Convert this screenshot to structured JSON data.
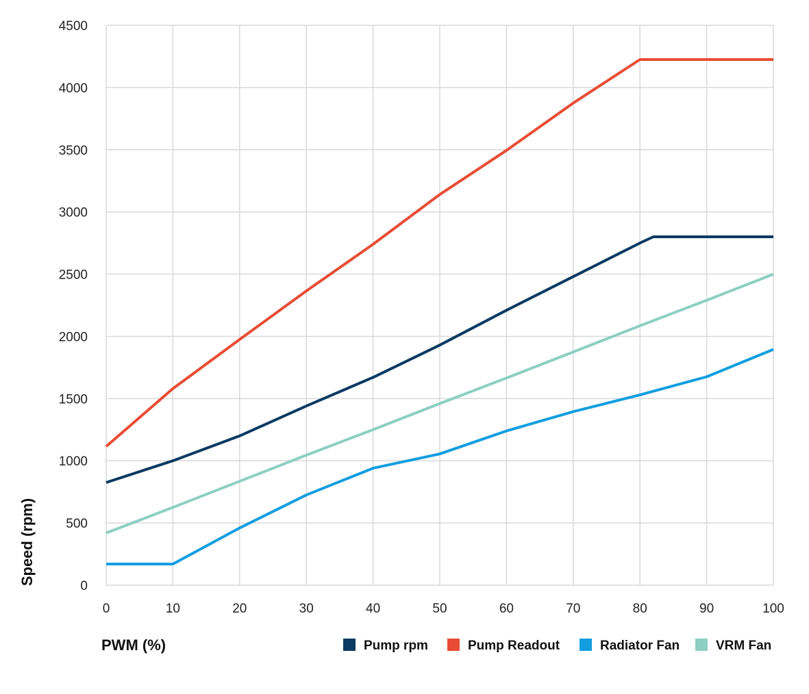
{
  "chart_data": {
    "type": "line",
    "xlabel": "PWM (%)",
    "ylabel": "Speed (rpm)",
    "xlim": [
      0,
      100
    ],
    "ylim": [
      0,
      4500
    ],
    "x_ticks": [
      0,
      10,
      20,
      30,
      40,
      50,
      60,
      70,
      80,
      90,
      100
    ],
    "y_ticks": [
      0,
      500,
      1000,
      1500,
      2000,
      2500,
      3000,
      3500,
      4000,
      4500
    ],
    "grid": true,
    "legend_position": "bottom-right",
    "series": [
      {
        "name": "Pump rpm",
        "color": "#0b3a62",
        "x": [
          0,
          10,
          20,
          30,
          40,
          50,
          60,
          70,
          80,
          82,
          90,
          100
        ],
        "y": [
          825,
          1000,
          1200,
          1440,
          1670,
          1930,
          2210,
          2480,
          2750,
          2800,
          2800,
          2800
        ]
      },
      {
        "name": "Pump Readout",
        "color": "#e84c34",
        "x": [
          0,
          10,
          20,
          30,
          40,
          50,
          60,
          70,
          80,
          90,
          100
        ],
        "y": [
          1115,
          1580,
          1975,
          2365,
          2740,
          3140,
          3495,
          3875,
          4225,
          4225,
          4225
        ]
      },
      {
        "name": "Radiator Fan",
        "color": "#129ee0",
        "x": [
          0,
          10,
          20,
          30,
          40,
          50,
          60,
          70,
          80,
          90,
          100
        ],
        "y": [
          170,
          170,
          460,
          725,
          940,
          1055,
          1240,
          1395,
          1530,
          1675,
          1895
        ]
      },
      {
        "name": "VRM Fan",
        "color": "#8dcfc2",
        "x": [
          0,
          10,
          20,
          30,
          40,
          50,
          60,
          70,
          80,
          90,
          100
        ],
        "y": [
          420,
          625,
          835,
          1045,
          1250,
          1460,
          1665,
          1875,
          2085,
          2290,
          2500
        ]
      }
    ]
  }
}
